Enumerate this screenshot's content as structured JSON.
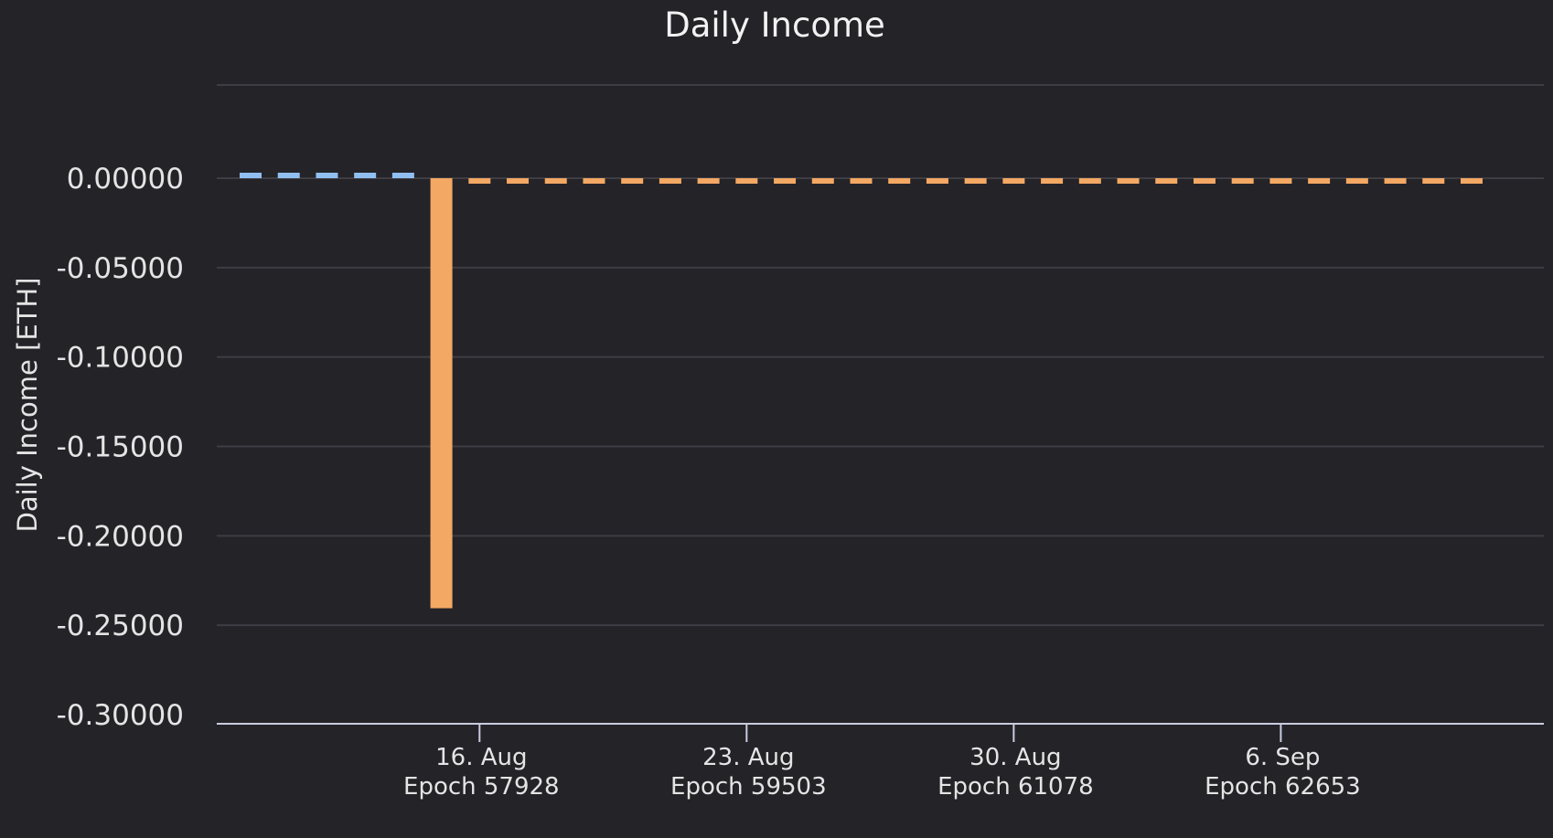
{
  "chart_data": {
    "type": "bar",
    "title": "Daily Income",
    "ylabel": "Daily Income [ETH]",
    "xlabel": "",
    "ylim": [
      -0.3,
      0.05
    ],
    "y_ticks": [
      "0.00000",
      "-0.05000",
      "-0.10000",
      "-0.15000",
      "-0.20000",
      "-0.25000",
      "-0.30000"
    ],
    "y_tick_values": [
      0,
      -0.05,
      -0.1,
      -0.15,
      -0.2,
      -0.25,
      -0.3
    ],
    "x_range": [
      "2023-08-07",
      "2023-09-11"
    ],
    "x_ticks": [
      {
        "date": "2023-08-16",
        "label": "16. Aug",
        "sublabel": "Epoch 57928"
      },
      {
        "date": "2023-08-23",
        "label": "23. Aug",
        "sublabel": "Epoch 59503"
      },
      {
        "date": "2023-08-30",
        "label": "30. Aug",
        "sublabel": "Epoch 61078"
      },
      {
        "date": "2023-09-06",
        "label": "6. Sep",
        "sublabel": "Epoch 62653"
      }
    ],
    "grid": true,
    "colors": {
      "positive": "#90bff0",
      "negative": "#f3a863"
    },
    "series": [
      {
        "color": "#90bff0",
        "x": [
          "2023-08-10",
          "2023-08-11",
          "2023-08-12",
          "2023-08-13",
          "2023-08-14"
        ],
        "values": [
          0.001,
          0.001,
          0.001,
          0.001,
          0.001
        ]
      },
      {
        "color": "#f3a863",
        "x": [
          "2023-08-15",
          "2023-08-16",
          "2023-08-17",
          "2023-08-18",
          "2023-08-19",
          "2023-08-20",
          "2023-08-21",
          "2023-08-22",
          "2023-08-23",
          "2023-08-24",
          "2023-08-25",
          "2023-08-26",
          "2023-08-27",
          "2023-08-28",
          "2023-08-29",
          "2023-08-30",
          "2023-08-31",
          "2023-09-01",
          "2023-09-02",
          "2023-09-03",
          "2023-09-04",
          "2023-09-05",
          "2023-09-06",
          "2023-09-07",
          "2023-09-08",
          "2023-09-09",
          "2023-09-10",
          "2023-09-11"
        ],
        "values": [
          -0.2405,
          -0.001,
          -0.001,
          -0.001,
          -0.001,
          -0.001,
          -0.001,
          -0.001,
          -0.001,
          -0.001,
          -0.001,
          -0.001,
          -0.001,
          -0.001,
          -0.001,
          -0.001,
          -0.001,
          -0.001,
          -0.001,
          -0.001,
          -0.001,
          -0.001,
          -0.001,
          -0.001,
          -0.001,
          -0.001,
          -0.001,
          -0.001
        ]
      }
    ]
  }
}
